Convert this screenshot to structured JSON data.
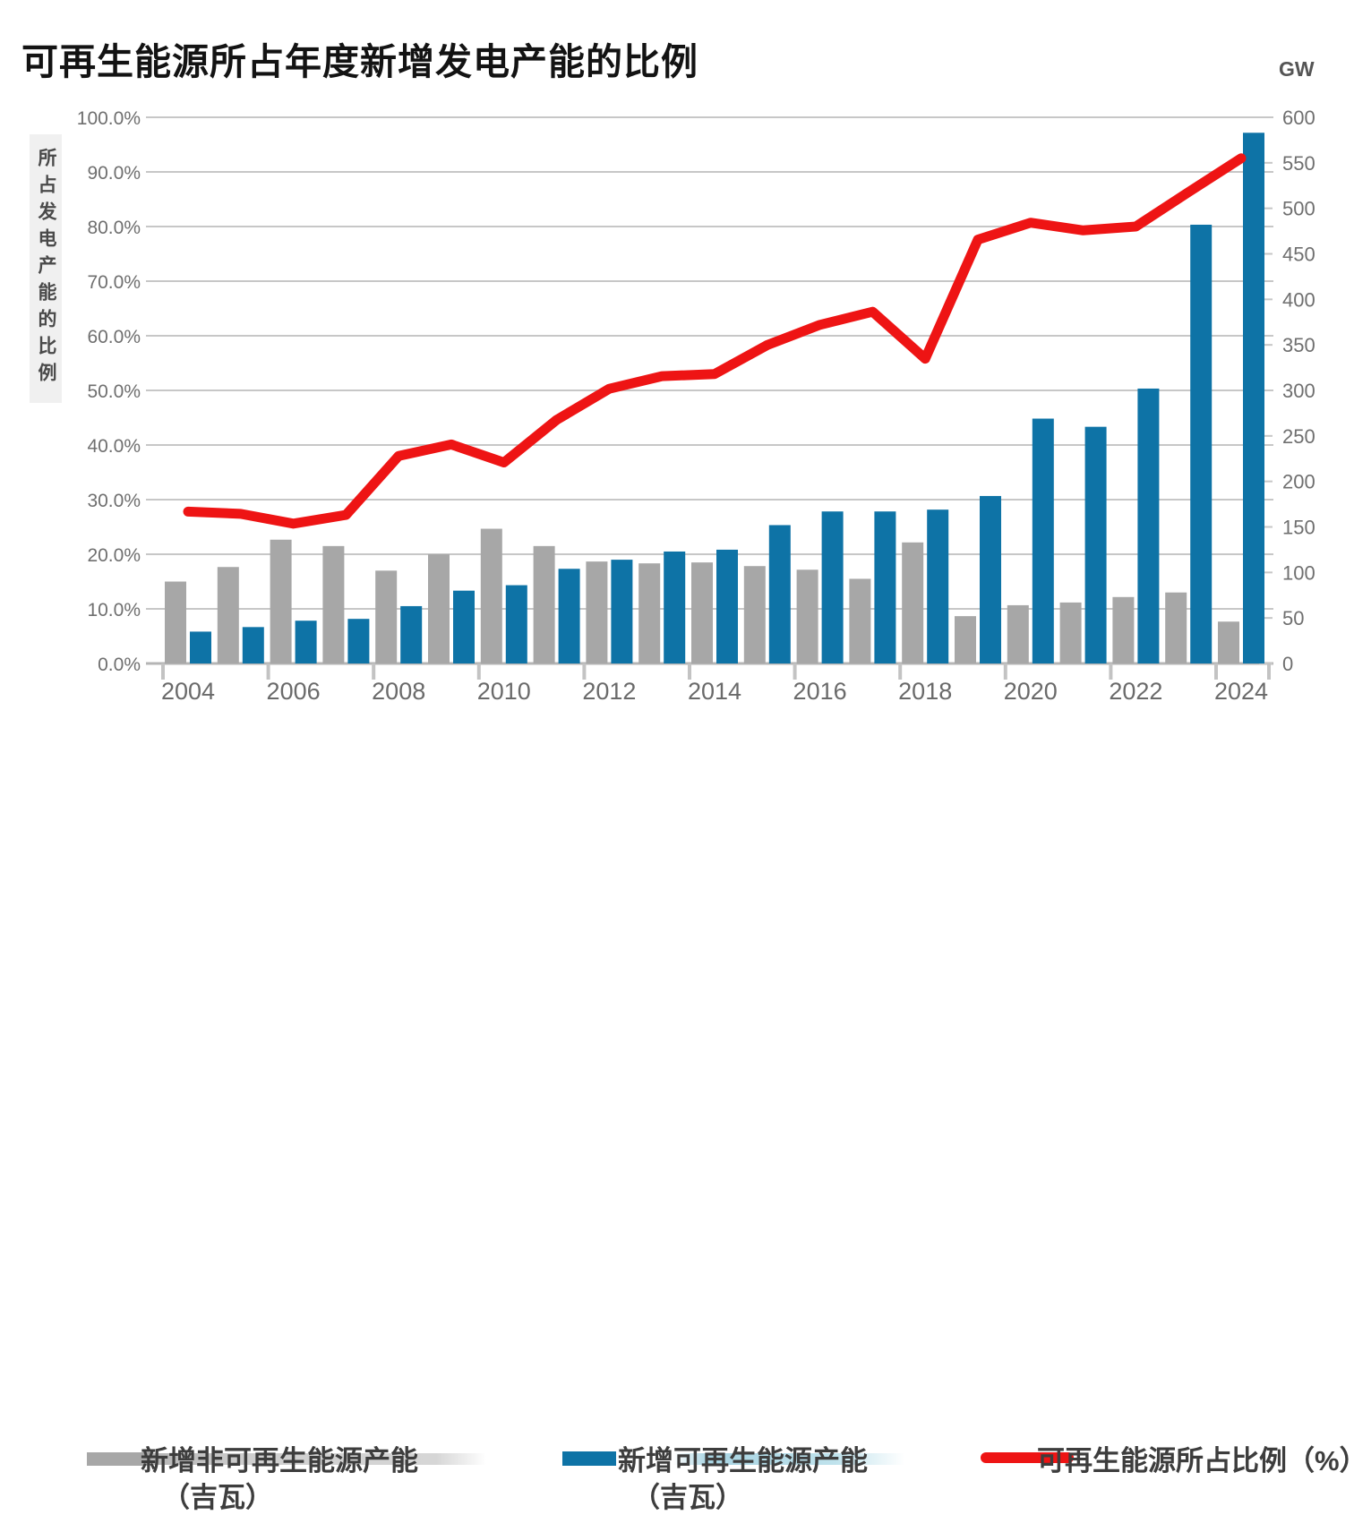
{
  "title": "可再生能源所占年度新增发电产能的比例",
  "left_axis_title": "所占发电产能的比例",
  "right_axis_unit": "GW",
  "colors": {
    "nonrenewable_bar": "#a7a7a7",
    "renewable_bar": "#0e73a6",
    "share_line": "#ee1414",
    "gridline": "#c7c7c7",
    "tick_text": "#6f6f6f"
  },
  "legend": {
    "items": [
      {
        "line1": "新增非可再生能源产能",
        "line2": "（吉瓦）",
        "marker": "gray-bar",
        "color": "#a7a7a7"
      },
      {
        "line1": "新增可再生能源产能",
        "line2": "（吉瓦）",
        "marker": "blue-bar",
        "color": "#0e73a6"
      },
      {
        "line1": "可再生能源所占比例（%）",
        "line2": "",
        "marker": "red-line",
        "color": "#ee1414"
      }
    ]
  },
  "chart_data": {
    "type": "bar",
    "subtype": "grouped-bars-with-line-combo",
    "title": "可再生能源所占年度新增发电产能的比例",
    "categories": [
      2004,
      2005,
      2006,
      2007,
      2008,
      2009,
      2010,
      2011,
      2012,
      2013,
      2014,
      2015,
      2016,
      2017,
      2018,
      2019,
      2020,
      2021,
      2022,
      2023,
      2024
    ],
    "x_tick_labels": [
      "2004",
      "2006",
      "2008",
      "2010",
      "2012",
      "2014",
      "2016",
      "2018",
      "2020",
      "2022",
      "2024"
    ],
    "series": [
      {
        "name": "新增非可再生能源产能（吉瓦）",
        "type": "bar",
        "axis": "right",
        "unit": "GW",
        "color": "#a7a7a7",
        "values": [
          90,
          106,
          136,
          129,
          102,
          120,
          148,
          129,
          112,
          110,
          111,
          107,
          103,
          93,
          133,
          52,
          64,
          67,
          73,
          78,
          46
        ]
      },
      {
        "name": "新增可再生能源产能（吉瓦）",
        "type": "bar",
        "axis": "right",
        "unit": "GW",
        "color": "#0e73a6",
        "values": [
          35,
          40,
          47,
          49,
          63,
          80,
          86,
          104,
          114,
          123,
          125,
          152,
          167,
          167,
          169,
          184,
          269,
          260,
          302,
          482,
          583
        ]
      },
      {
        "name": "可再生能源所占比例（%）",
        "type": "line",
        "axis": "left",
        "unit": "%",
        "color": "#ee1414",
        "values": [
          27.8,
          27.4,
          25.6,
          27.2,
          38.0,
          40.1,
          36.8,
          44.6,
          50.3,
          52.6,
          53.0,
          58.3,
          62.0,
          64.4,
          55.8,
          77.6,
          80.7,
          79.3,
          80.0,
          86.3,
          92.5
        ]
      }
    ],
    "left_axis": {
      "label": "所占发电产能的比例",
      "unit": "%",
      "min": 0,
      "max": 100,
      "tick_step": 10,
      "tick_labels": [
        "0.0%",
        "10.0%",
        "20.0%",
        "30.0%",
        "40.0%",
        "50.0%",
        "60.0%",
        "70.0%",
        "80.0%",
        "90.0%",
        "100.0%"
      ]
    },
    "right_axis": {
      "label": "GW",
      "min": 0,
      "max": 600,
      "tick_step": 50,
      "tick_labels": [
        "0",
        "50",
        "100",
        "150",
        "200",
        "250",
        "300",
        "350",
        "400",
        "450",
        "500",
        "550",
        "600"
      ]
    },
    "grid": {
      "horizontal": true,
      "step_percent": 10
    },
    "legend_position": "bottom"
  }
}
